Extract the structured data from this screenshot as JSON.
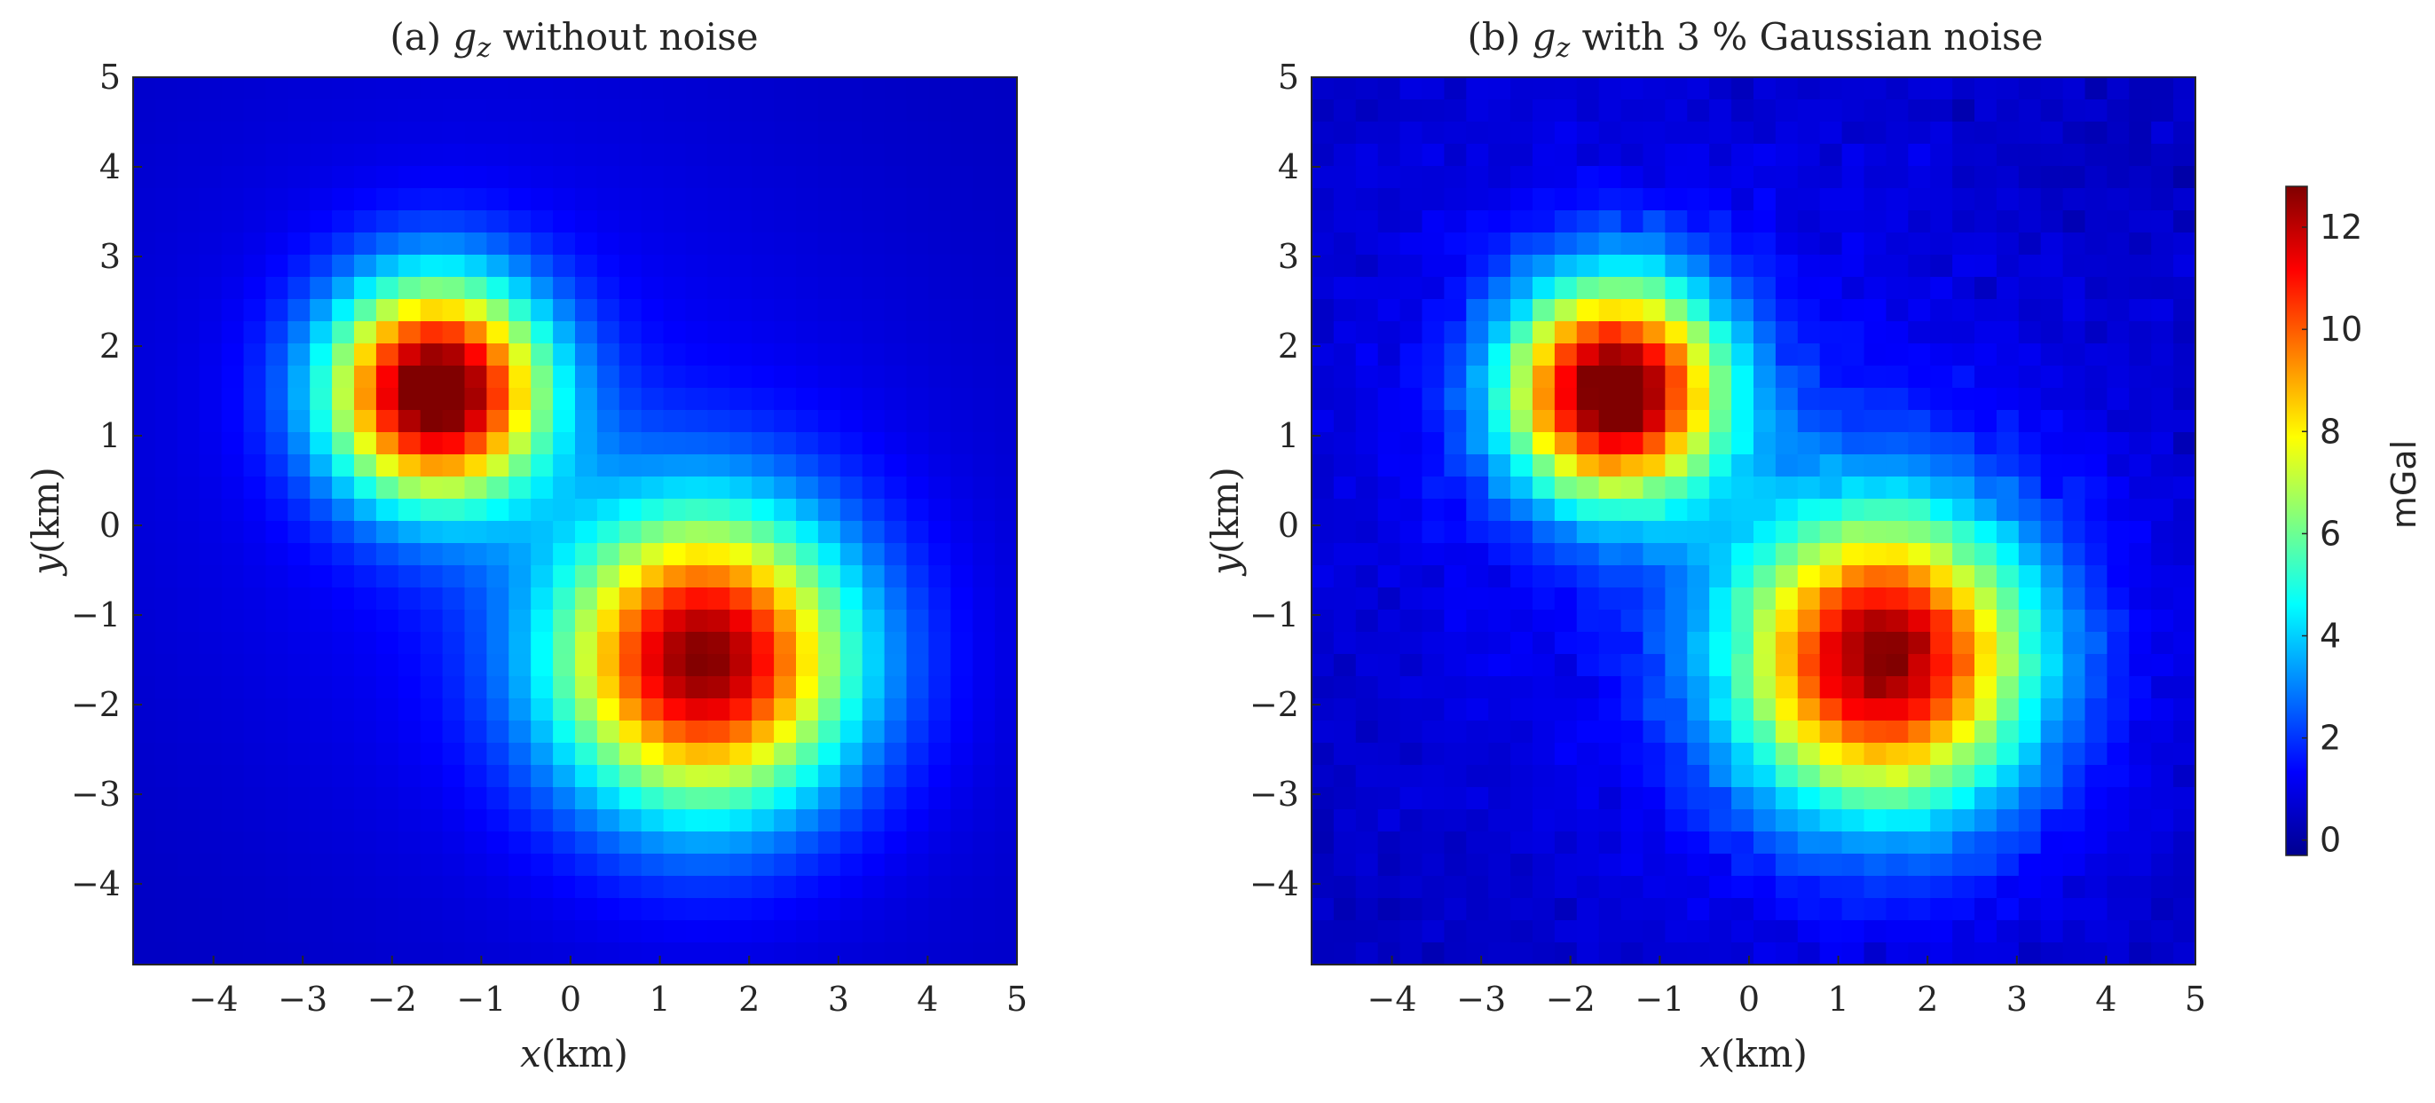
{
  "chart_data": [
    {
      "type": "heatmap",
      "title": {
        "prefix": "(a)",
        "symbol": "g",
        "subscript": "z",
        "suffix": "without noise"
      },
      "xlabel": {
        "var": "x",
        "unit": "(km)"
      },
      "ylabel": {
        "var": "y",
        "unit": "(km)"
      },
      "xlim": [
        -4.9,
        5
      ],
      "ylim": [
        -4.9,
        5
      ],
      "xticks": [
        "−4",
        "−3",
        "−2",
        "−1",
        "0",
        "1",
        "2",
        "3",
        "4",
        "5"
      ],
      "yticks": [
        "5",
        "4",
        "3",
        "2",
        "1",
        "0",
        "−1",
        "−2",
        "−3",
        "−4"
      ],
      "colormap": "jet",
      "clim": [
        -0.3,
        12.8
      ],
      "noise_percent": 0,
      "sources": [
        {
          "x": -1.5,
          "y": 1.5,
          "peak": 12.5,
          "sigma": 0.85
        },
        {
          "x": 1.5,
          "y": -1.5,
          "peak": 11.5,
          "sigma": 1.15
        }
      ]
    },
    {
      "type": "heatmap",
      "title": {
        "prefix": "(b)",
        "symbol": "g",
        "subscript": "z",
        "suffix": "with 3 % Gaussian noise"
      },
      "xlabel": {
        "var": "x",
        "unit": "(km)"
      },
      "ylabel": {
        "var": "y",
        "unit": "(km)"
      },
      "xlim": [
        -4.9,
        5
      ],
      "ylim": [
        -4.9,
        5
      ],
      "xticks": [
        "−4",
        "−3",
        "−2",
        "−1",
        "0",
        "1",
        "2",
        "3",
        "4",
        "5"
      ],
      "yticks": [
        "5",
        "4",
        "3",
        "2",
        "1",
        "0",
        "−1",
        "−2",
        "−3",
        "−4"
      ],
      "colormap": "jet",
      "clim": [
        -0.3,
        12.8
      ],
      "noise_percent": 3,
      "sources": [
        {
          "x": -1.5,
          "y": 1.5,
          "peak": 12.5,
          "sigma": 0.85
        },
        {
          "x": 1.5,
          "y": -1.5,
          "peak": 11.5,
          "sigma": 1.15
        }
      ]
    }
  ],
  "colorbar": {
    "label": "mGal",
    "ticks": [
      "12",
      "10",
      "8",
      "6",
      "4",
      "2",
      "0"
    ],
    "range": [
      -0.3,
      12.8
    ]
  }
}
